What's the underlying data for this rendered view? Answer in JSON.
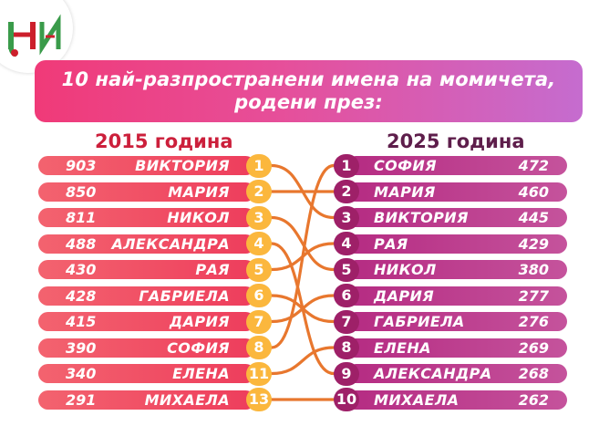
{
  "title": {
    "line1": "10 най-разпространени имена на момичета,",
    "line2": "родени през:"
  },
  "headers": {
    "left": "2015 година",
    "right": "2025 година"
  },
  "left_rows": [
    {
      "count": "903",
      "name": "ВИКТОРИЯ",
      "rank": "1"
    },
    {
      "count": "850",
      "name": "МАРИЯ",
      "rank": "2"
    },
    {
      "count": "811",
      "name": "НИКОЛ",
      "rank": "3"
    },
    {
      "count": "488",
      "name": "АЛЕКСАНДРА",
      "rank": "4"
    },
    {
      "count": "430",
      "name": "РАЯ",
      "rank": "5"
    },
    {
      "count": "428",
      "name": "ГАБРИЕЛА",
      "rank": "6"
    },
    {
      "count": "415",
      "name": "ДАРИЯ",
      "rank": "7"
    },
    {
      "count": "390",
      "name": "СОФИЯ",
      "rank": "8"
    },
    {
      "count": "340",
      "name": "ЕЛЕНА",
      "rank": "11"
    },
    {
      "count": "291",
      "name": "МИХАЕЛА",
      "rank": "13"
    }
  ],
  "right_rows": [
    {
      "rank": "1",
      "name": "СОФИЯ",
      "count": "472"
    },
    {
      "rank": "2",
      "name": "МАРИЯ",
      "count": "460"
    },
    {
      "rank": "3",
      "name": "ВИКТОРИЯ",
      "count": "445"
    },
    {
      "rank": "4",
      "name": "РАЯ",
      "count": "429"
    },
    {
      "rank": "5",
      "name": "НИКОЛ",
      "count": "380"
    },
    {
      "rank": "6",
      "name": "ДАРИЯ",
      "count": "277"
    },
    {
      "rank": "7",
      "name": "ГАБРИЕЛА",
      "count": "276"
    },
    {
      "rank": "8",
      "name": "ЕЛЕНА",
      "count": "269"
    },
    {
      "rank": "9",
      "name": "АЛЕКСАНДРА",
      "count": "268"
    },
    {
      "rank": "10",
      "name": "МИХАЕЛА",
      "count": "262"
    }
  ],
  "links": [
    {
      "from": 1,
      "to": 3
    },
    {
      "from": 2,
      "to": 2
    },
    {
      "from": 3,
      "to": 5
    },
    {
      "from": 4,
      "to": 9
    },
    {
      "from": 5,
      "to": 4
    },
    {
      "from": 6,
      "to": 7
    },
    {
      "from": 7,
      "to": 6
    },
    {
      "from": 8,
      "to": 1
    },
    {
      "from": 9,
      "to": 8
    },
    {
      "from": 10,
      "to": 10
    }
  ],
  "colors": {
    "left_bar": "#ee3d5c",
    "left_badge": "#fbb73d",
    "right_bar": "#b52b82",
    "right_badge": "#9e2068",
    "link": "#e8772e",
    "banner_start": "#f03a78",
    "banner_end": "#c56ccf"
  },
  "logo": {
    "icon": "ni-logo-icon"
  }
}
